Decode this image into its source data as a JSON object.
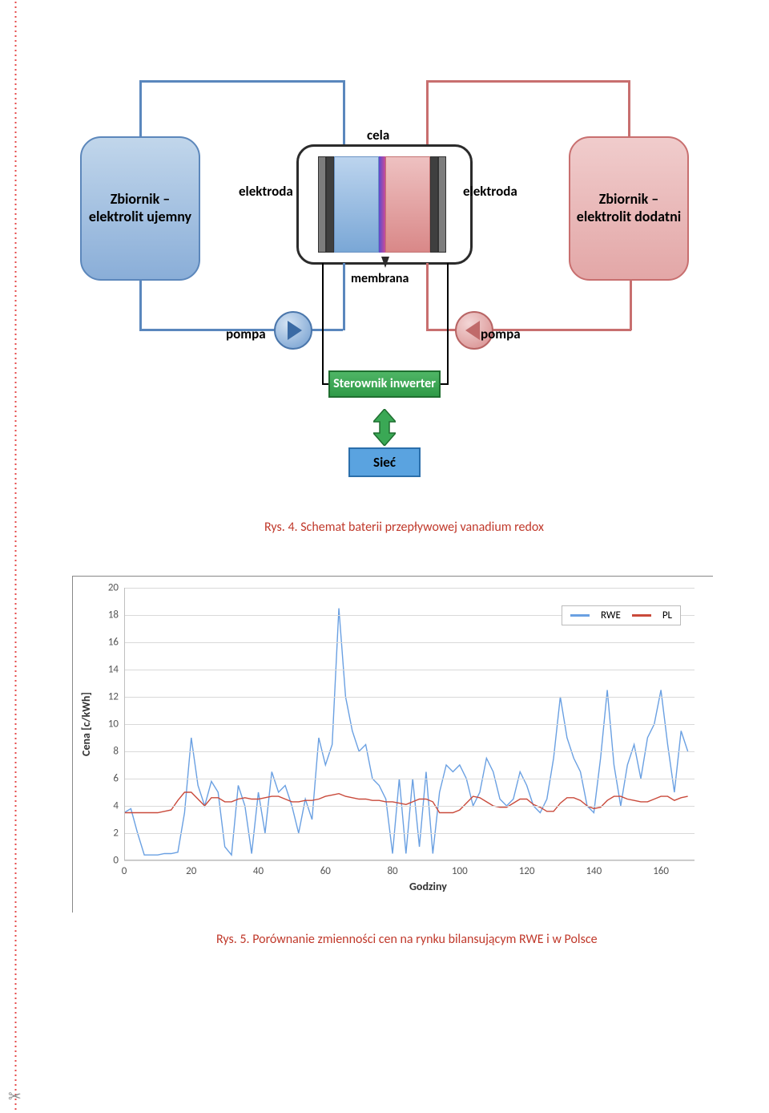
{
  "figure4": {
    "type": "flowchart",
    "nodes": {
      "tank_neg": {
        "text": "Zbiornik – elektrolit ujemny",
        "fill_top": "#c1d6eb",
        "fill_bottom": "#8aaed8",
        "border": "#5c87bb"
      },
      "tank_pos": {
        "text": "Zbiornik – elektrolit dodatni",
        "fill_top": "#f0cccc",
        "fill_bottom": "#e3a7a7",
        "border": "#c86f6f"
      },
      "cell_label": "cela",
      "electrode_l": "elektroda",
      "electrode_r": "elektroda",
      "membrane": "membrana",
      "pump_l": "pompa",
      "pump_r": "pompa",
      "controller": "Sterownik inwerter",
      "grid": "Sieć"
    },
    "colors": {
      "pipe_blue": "#5a87bd",
      "pipe_red": "#c86f6f",
      "pipe_black": "#000000",
      "controller_fill": "#3aa855",
      "controller_border": "#1f6e30",
      "grid_fill": "#5aa3e0",
      "grid_border": "#2b6fab",
      "membrane_gradient": [
        "#5a4bcf",
        "#c94c99"
      ],
      "electrode_dark": "#3f3f3f",
      "electrode_light": "#7d7d7d"
    },
    "caption": "Rys. 4. Schemat baterii przepływowej vanadium redox",
    "caption_color": "#c0392b"
  },
  "figure5": {
    "type": "line",
    "xlabel": "Godziny",
    "ylabel": "Cena [c/kWh]",
    "xlim": [
      0,
      170
    ],
    "ylim": [
      0,
      20
    ],
    "ytick_step": 2,
    "xtick_step": 20,
    "grid_color": "#d9d9d9",
    "background": "#ffffff",
    "axis_color": "#bfbfbf",
    "label_fontsize": 14,
    "tick_fontsize": 13,
    "line_width": 1.4,
    "legend": {
      "items": [
        {
          "label": "RWE",
          "color": "#6aa0e2"
        },
        {
          "label": "PL",
          "color": "#c94a3b"
        }
      ]
    },
    "series": {
      "RWE": {
        "color": "#6aa0e2",
        "x": [
          0,
          2,
          4,
          6,
          8,
          10,
          12,
          14,
          16,
          18,
          20,
          22,
          24,
          26,
          28,
          30,
          32,
          34,
          36,
          38,
          40,
          42,
          44,
          46,
          48,
          50,
          52,
          54,
          56,
          58,
          60,
          62,
          64,
          66,
          68,
          70,
          72,
          74,
          76,
          78,
          80,
          82,
          84,
          86,
          88,
          90,
          92,
          94,
          96,
          98,
          100,
          102,
          104,
          106,
          108,
          110,
          112,
          114,
          116,
          118,
          120,
          122,
          124,
          126,
          128,
          130,
          132,
          134,
          136,
          138,
          140,
          142,
          144,
          146,
          148,
          150,
          152,
          154,
          156,
          158,
          160,
          162,
          164,
          166,
          168
        ],
        "y": [
          3.5,
          3.8,
          2.0,
          0.4,
          0.4,
          0.4,
          0.5,
          0.5,
          0.6,
          3.5,
          9.0,
          5.5,
          4.0,
          5.8,
          5.0,
          1.0,
          0.4,
          5.5,
          4.0,
          0.5,
          5.0,
          2.0,
          6.5,
          5.0,
          5.5,
          4.0,
          2.0,
          4.5,
          3.0,
          9.0,
          7.0,
          8.5,
          18.5,
          12.0,
          9.5,
          8.0,
          8.5,
          6.0,
          5.5,
          4.5,
          0.5,
          6.0,
          0.5,
          6.0,
          1.0,
          6.5,
          0.5,
          5.0,
          7.0,
          6.5,
          7.0,
          6.0,
          4.0,
          5.0,
          7.5,
          6.5,
          4.5,
          4.0,
          4.5,
          6.5,
          5.5,
          4.0,
          3.5,
          4.5,
          7.5,
          12.0,
          9.0,
          7.5,
          6.5,
          4.0,
          3.5,
          7.5,
          12.5,
          7.0,
          4.0,
          7.0,
          8.5,
          6.0,
          9.0,
          10.0,
          12.5,
          8.5,
          5.0,
          9.5,
          8.0
        ]
      },
      "PL": {
        "color": "#c94a3b",
        "x": [
          0,
          2,
          4,
          6,
          8,
          10,
          12,
          14,
          16,
          18,
          20,
          22,
          24,
          26,
          28,
          30,
          32,
          34,
          36,
          38,
          40,
          42,
          44,
          46,
          48,
          50,
          52,
          54,
          56,
          58,
          60,
          62,
          64,
          66,
          68,
          70,
          72,
          74,
          76,
          78,
          80,
          82,
          84,
          86,
          88,
          90,
          92,
          94,
          96,
          98,
          100,
          102,
          104,
          106,
          108,
          110,
          112,
          114,
          116,
          118,
          120,
          122,
          124,
          126,
          128,
          130,
          132,
          134,
          136,
          138,
          140,
          142,
          144,
          146,
          148,
          150,
          152,
          154,
          156,
          158,
          160,
          162,
          164,
          166,
          168
        ],
        "y": [
          3.5,
          3.5,
          3.5,
          3.5,
          3.5,
          3.5,
          3.6,
          3.7,
          4.4,
          5.0,
          5.0,
          4.5,
          4.0,
          4.6,
          4.6,
          4.3,
          4.3,
          4.5,
          4.6,
          4.5,
          4.5,
          4.6,
          4.7,
          4.7,
          4.5,
          4.3,
          4.3,
          4.4,
          4.4,
          4.5,
          4.7,
          4.8,
          4.9,
          4.7,
          4.6,
          4.5,
          4.5,
          4.4,
          4.4,
          4.3,
          4.3,
          4.2,
          4.1,
          4.3,
          4.5,
          4.5,
          4.3,
          3.5,
          3.5,
          3.5,
          3.7,
          4.2,
          4.7,
          4.6,
          4.3,
          4.0,
          3.9,
          3.9,
          4.2,
          4.5,
          4.5,
          4.1,
          3.9,
          3.6,
          3.6,
          4.2,
          4.6,
          4.6,
          4.4,
          4.0,
          3.8,
          3.9,
          4.4,
          4.7,
          4.7,
          4.5,
          4.4,
          4.3,
          4.3,
          4.5,
          4.7,
          4.7,
          4.4,
          4.6,
          4.7
        ]
      }
    },
    "caption": "Rys. 5. Porównanie zmienności cen na rynku bilansującym RWE i w Polsce",
    "caption_color": "#c0392b"
  }
}
